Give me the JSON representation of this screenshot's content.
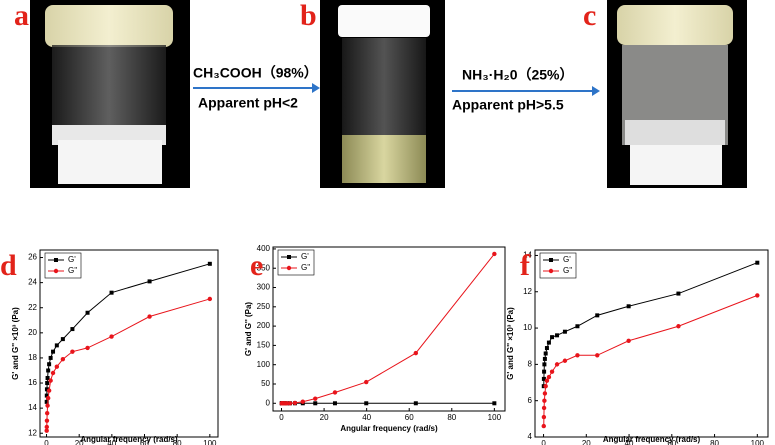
{
  "photo_labels": [
    "a",
    "b",
    "c"
  ],
  "arrows": [
    {
      "above": "CH₃COOH（98%）",
      "below": "Apparent pH<2"
    },
    {
      "above": "NH₃·H₂0（25%）",
      "below": "Apparent pH>5.5"
    }
  ],
  "chart_data": [
    {
      "type": "line",
      "panel": "d",
      "xlabel": "Angular frequency (rad/s)",
      "ylabel": "G' and G'' ×10³ (Pa)",
      "x": [
        0.1,
        0.158,
        0.251,
        0.398,
        0.631,
        1,
        1.585,
        2.512,
        3.981,
        6.31,
        10,
        15.85,
        25.12,
        39.81,
        63.1,
        100
      ],
      "xlim": [
        -4,
        105
      ],
      "xticks": [
        0,
        20,
        40,
        60,
        80,
        100
      ],
      "ylim": [
        11.7,
        26.6
      ],
      "yticks": [
        12,
        14,
        16,
        18,
        20,
        22,
        24,
        26
      ],
      "series": [
        {
          "name": "G'",
          "color": "#000000",
          "marker": "square",
          "values": [
            14.5,
            15,
            15.5,
            16,
            16.4,
            17,
            17.5,
            18,
            18.5,
            19,
            19.5,
            20.3,
            21.6,
            23.2,
            24.1,
            25.5
          ]
        },
        {
          "name": "G''",
          "color": "#e8141b",
          "marker": "circle",
          "values": [
            12.2,
            12.5,
            13,
            13.6,
            14.2,
            14.8,
            15.4,
            16.2,
            16.8,
            17.3,
            17.9,
            18.5,
            18.8,
            19.7,
            21.3,
            22.7
          ]
        }
      ]
    },
    {
      "type": "line",
      "panel": "e",
      "xlabel": "Angular frequency (rad/s)",
      "ylabel": "G' and G'' (Pa)",
      "x": [
        0.1,
        0.158,
        0.251,
        0.398,
        0.631,
        1,
        1.585,
        2.512,
        3.981,
        6.31,
        10,
        15.85,
        25.12,
        39.81,
        63.1,
        100
      ],
      "xlim": [
        -4,
        105
      ],
      "xticks": [
        0,
        20,
        40,
        60,
        80,
        100
      ],
      "ylim": [
        -20,
        405
      ],
      "yticks": [
        0,
        50,
        100,
        150,
        200,
        250,
        300,
        350,
        400
      ],
      "series": [
        {
          "name": "G'",
          "color": "#000000",
          "marker": "square",
          "values": [
            0,
            0,
            0,
            0,
            0,
            0,
            0,
            0,
            0,
            0,
            0,
            0,
            0,
            0,
            0,
            0
          ]
        },
        {
          "name": "G''",
          "color": "#e8141b",
          "marker": "circle",
          "values": [
            0,
            0,
            0,
            0,
            0,
            0,
            0,
            0,
            0,
            1,
            4,
            12,
            28,
            55,
            130,
            387
          ]
        }
      ]
    },
    {
      "type": "line",
      "panel": "f",
      "xlabel": "Angular frequency (rad/s)",
      "ylabel": "G' and G'' ×10³ (Pa)",
      "x": [
        0.1,
        0.158,
        0.251,
        0.398,
        0.631,
        1,
        1.585,
        2.512,
        3.981,
        6.31,
        10,
        15.85,
        25.12,
        39.81,
        63.1,
        100
      ],
      "xlim": [
        -4,
        105
      ],
      "xticks": [
        0,
        20,
        40,
        60,
        80,
        100
      ],
      "ylim": [
        4,
        14.3
      ],
      "yticks": [
        4,
        6,
        8,
        10,
        12,
        14
      ],
      "series": [
        {
          "name": "G'",
          "color": "#000000",
          "marker": "square",
          "values": [
            6.8,
            7.2,
            7.6,
            8,
            8.3,
            8.6,
            8.9,
            9.2,
            9.5,
            9.6,
            9.8,
            10.1,
            10.7,
            11.2,
            11.9,
            13.6
          ]
        },
        {
          "name": "G''",
          "color": "#e8141b",
          "marker": "circle",
          "values": [
            4.6,
            5.1,
            5.6,
            6,
            6.4,
            6.8,
            7.1,
            7.3,
            7.6,
            8,
            8.2,
            8.5,
            8.5,
            9.3,
            10.1,
            11.8
          ]
        }
      ]
    }
  ]
}
